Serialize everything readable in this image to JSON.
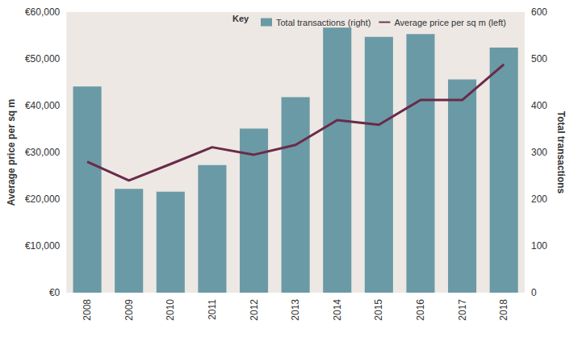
{
  "chart_data": {
    "type": "bar",
    "legend_title": "Key",
    "legend": "upper right",
    "grid": false,
    "categories": [
      "2008",
      "2009",
      "2010",
      "2011",
      "2012",
      "2013",
      "2014",
      "2015",
      "2016",
      "2017",
      "2018"
    ],
    "y_label": "Average price per sq m",
    "y2_label": "Total transactions",
    "ylim": [
      0,
      60000
    ],
    "yticks": [
      {
        "value": 0,
        "label": "€0"
      },
      {
        "value": 10000,
        "label": "€10,000"
      },
      {
        "value": 20000,
        "label": "€20,000"
      },
      {
        "value": 30000,
        "label": "€30,000"
      },
      {
        "value": 40000,
        "label": "€40,000"
      },
      {
        "value": 50000,
        "label": "€50,000"
      },
      {
        "value": 60000,
        "label": "€60,000"
      }
    ],
    "y2lim": [
      0,
      600
    ],
    "y2ticks": [
      0,
      100,
      200,
      300,
      400,
      500,
      600
    ],
    "series": [
      {
        "name": "Total transactions (right)",
        "type": "bar",
        "axis": "y2",
        "color": "#6a9aa5",
        "values": [
          441,
          222,
          216,
          273,
          351,
          418,
          567,
          547,
          553,
          456,
          524
        ]
      },
      {
        "name": "Average price per sq m (left)",
        "type": "line",
        "axis": "y",
        "color": "#6b2a4a",
        "values": [
          28000,
          24000,
          27500,
          31100,
          29500,
          31600,
          36900,
          35900,
          41200,
          41200,
          48800
        ]
      }
    ]
  }
}
